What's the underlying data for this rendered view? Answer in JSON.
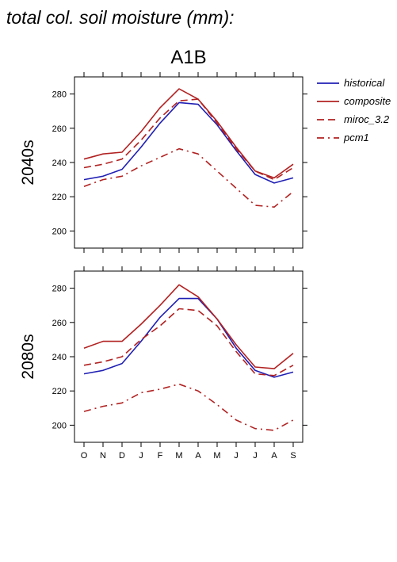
{
  "page_title": "total col. soil moisture (mm):",
  "scenario": "A1B",
  "legend": [
    {
      "name": "historical",
      "color": "#1f1fb4",
      "dash": "solid"
    },
    {
      "name": "composite",
      "color": "#b22222",
      "dash": "solid"
    },
    {
      "name": "miroc_3.2",
      "color": "#b22222",
      "dash": "longdash"
    },
    {
      "name": "pcm1",
      "color": "#b22222",
      "dash": "dashdot"
    }
  ],
  "chart_data": [
    {
      "type": "line",
      "ylabel": "2040s",
      "categories": [
        "O",
        "N",
        "D",
        "J",
        "F",
        "M",
        "A",
        "M",
        "J",
        "J",
        "A",
        "S"
      ],
      "yticks": [
        200,
        220,
        240,
        260,
        280
      ],
      "ylim": [
        190,
        290
      ],
      "series": [
        {
          "name": "historical",
          "values": [
            230,
            232,
            236,
            249,
            263,
            275,
            274,
            262,
            247,
            233,
            228,
            231
          ]
        },
        {
          "name": "composite",
          "values": [
            242,
            245,
            246,
            258,
            272,
            283,
            277,
            264,
            249,
            235,
            231,
            239
          ]
        },
        {
          "name": "miroc_3.2",
          "values": [
            237,
            239,
            242,
            253,
            266,
            276,
            277,
            263,
            248,
            235,
            230,
            237
          ]
        },
        {
          "name": "pcm1",
          "values": [
            226,
            230,
            232,
            238,
            243,
            248,
            245,
            235,
            225,
            215,
            214,
            223
          ]
        }
      ]
    },
    {
      "type": "line",
      "ylabel": "2080s",
      "categories": [
        "O",
        "N",
        "D",
        "J",
        "F",
        "M",
        "A",
        "M",
        "J",
        "J",
        "A",
        "S"
      ],
      "yticks": [
        200,
        220,
        240,
        260,
        280
      ],
      "ylim": [
        190,
        290
      ],
      "series": [
        {
          "name": "historical",
          "values": [
            230,
            232,
            236,
            249,
            263,
            274,
            274,
            262,
            245,
            232,
            228,
            231
          ]
        },
        {
          "name": "composite",
          "values": [
            245,
            249,
            249,
            259,
            270,
            282,
            275,
            262,
            247,
            234,
            233,
            242
          ]
        },
        {
          "name": "miroc_3.2",
          "values": [
            235,
            237,
            240,
            250,
            258,
            268,
            267,
            258,
            243,
            230,
            229,
            235
          ]
        },
        {
          "name": "pcm1",
          "values": [
            208,
            211,
            213,
            219,
            221,
            224,
            220,
            212,
            203,
            198,
            197,
            203
          ]
        }
      ]
    }
  ]
}
